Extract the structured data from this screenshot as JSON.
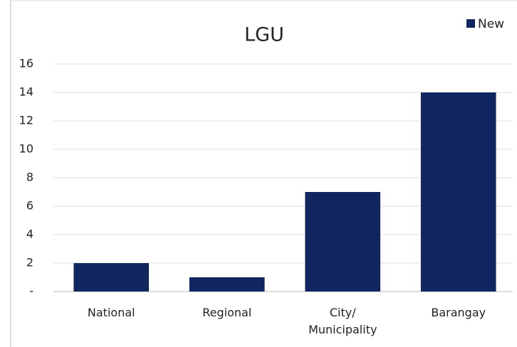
{
  "chart_data": {
    "type": "bar",
    "title": "LGU",
    "categories": [
      "National",
      "Regional",
      "City/ Municipality",
      "Barangay"
    ],
    "series": [
      {
        "name": "New",
        "color": "#0f2660",
        "values": [
          2,
          1,
          7,
          14
        ]
      }
    ],
    "ylim": [
      0,
      16
    ],
    "yticks": [
      {
        "value": 0,
        "label": "-"
      },
      2,
      4,
      6,
      8,
      10,
      12,
      14,
      16
    ],
    "grid": true,
    "legend": "top-right"
  }
}
